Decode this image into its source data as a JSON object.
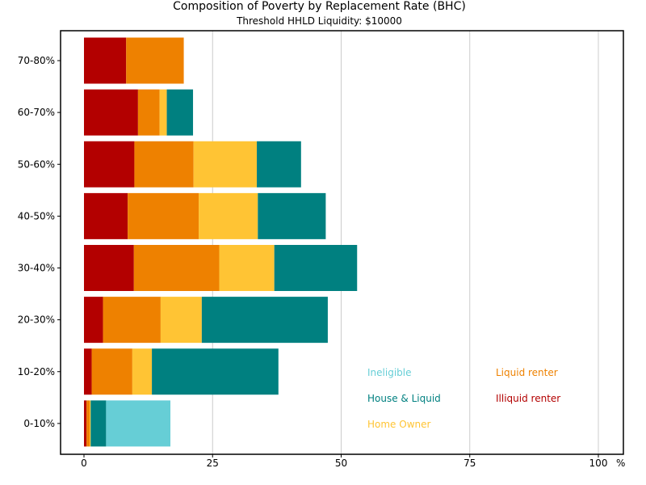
{
  "chart_data": {
    "type": "bar",
    "orientation": "horizontal",
    "stacked": true,
    "title": "Composition of Poverty by Replacement Rate (BHC)",
    "subtitle": "Threshold HHLD Liquidity: $10000",
    "xlabel": "%",
    "ylabel": "",
    "xlim": [
      0,
      100
    ],
    "xticks": [
      0,
      25,
      50,
      75,
      100
    ],
    "grid": "vertical",
    "legend_position": "bottom-right",
    "categories": [
      "0-10%",
      "10-20%",
      "20-30%",
      "30-40%",
      "40-50%",
      "50-60%",
      "60-70%",
      "70-80%"
    ],
    "series": [
      {
        "name": "Illiquid renter",
        "color": "#b30000",
        "values": [
          0.5,
          1.5,
          3.7,
          9.7,
          8.5,
          9.8,
          10.5,
          8.2
        ]
      },
      {
        "name": "Liquid renter",
        "color": "#ee8100",
        "values": [
          0.6,
          7.9,
          11.2,
          16.6,
          13.8,
          11.5,
          4.2,
          11.2
        ]
      },
      {
        "name": "Home Owner",
        "color": "#ffc434",
        "values": [
          0.2,
          3.8,
          8.0,
          10.7,
          11.5,
          12.3,
          1.4,
          0
        ]
      },
      {
        "name": "House & Liquid",
        "color": "#008080",
        "values": [
          3.0,
          24.6,
          24.5,
          16.1,
          13.2,
          8.6,
          5.1,
          0
        ]
      },
      {
        "name": "Ineligible",
        "color": "#66ced6",
        "values": [
          12.5,
          0,
          0,
          0,
          0,
          0,
          0,
          0
        ]
      }
    ],
    "legend": [
      {
        "name": "Ineligible",
        "color": "#66ced6"
      },
      {
        "name": "Liquid renter",
        "color": "#ee8100"
      },
      {
        "name": "House & Liquid",
        "color": "#008080"
      },
      {
        "name": "Illiquid renter",
        "color": "#b30000"
      },
      {
        "name": "Home Owner",
        "color": "#ffc434"
      }
    ]
  }
}
